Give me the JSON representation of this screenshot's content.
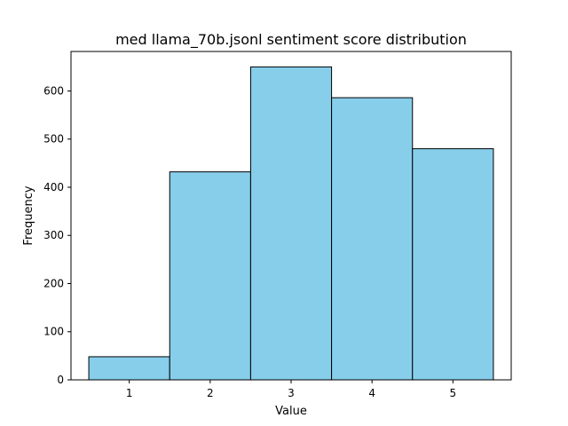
{
  "chart_data": {
    "type": "bar",
    "title": "med llama_70b.jsonl sentiment score distribution",
    "xlabel": "Value",
    "ylabel": "Frequency",
    "categories": [
      "1",
      "2",
      "3",
      "4",
      "5"
    ],
    "values": [
      48,
      432,
      650,
      586,
      480
    ],
    "ylim": [
      0,
      682
    ],
    "xlim": [
      0.28,
      5.72
    ],
    "yticks": [
      "0",
      "100",
      "200",
      "300",
      "400",
      "500",
      "600"
    ],
    "xticks": [
      "1",
      "2",
      "3",
      "4",
      "5"
    ],
    "bar_color": "#87CEEB",
    "edge_color": "#000000",
    "grid": false,
    "legend": "none"
  }
}
